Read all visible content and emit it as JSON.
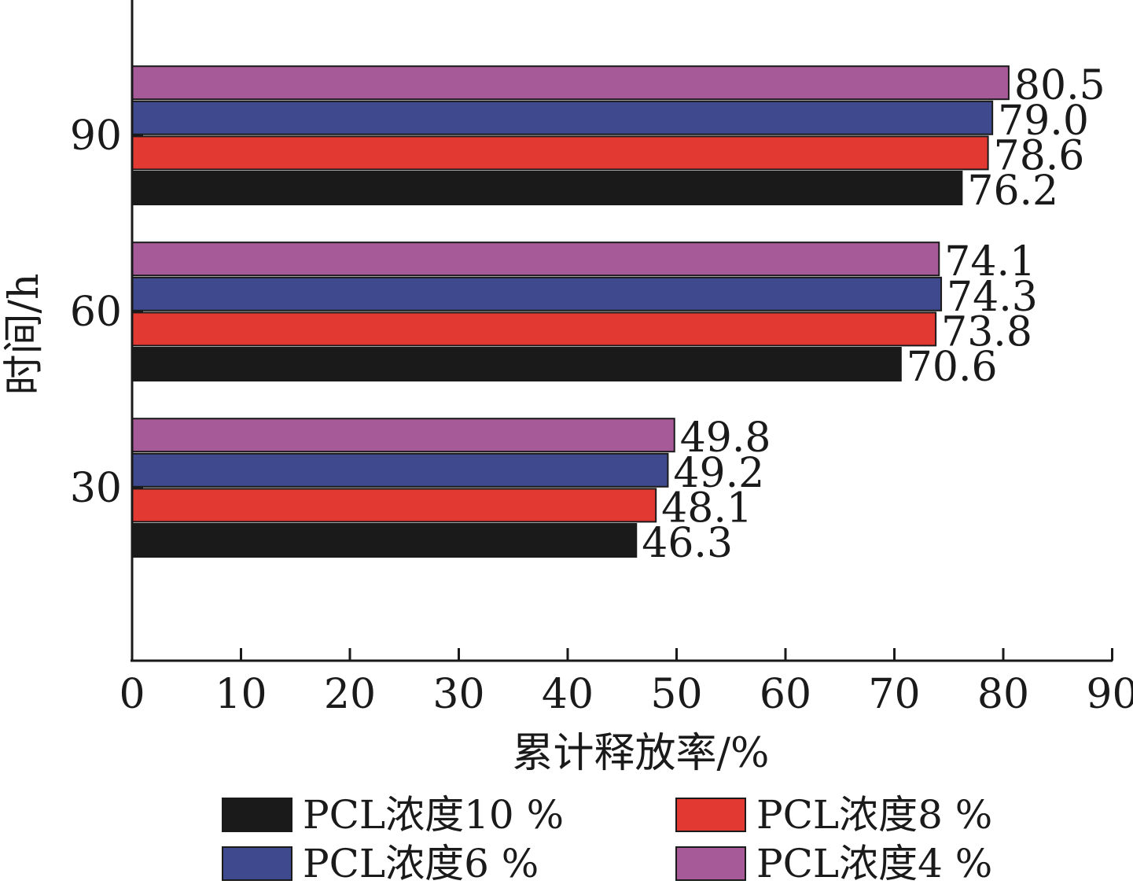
{
  "chart_data": {
    "type": "bar",
    "orientation": "horizontal",
    "categories": [
      "30",
      "60",
      "90"
    ],
    "xlabel": "累计释放率/%",
    "ylabel": "时间/h",
    "xlim": [
      0,
      90
    ],
    "x_ticks": [
      "0",
      "10",
      "20",
      "30",
      "40",
      "50",
      "60",
      "70",
      "80",
      "90"
    ],
    "grid": false,
    "legend_position": "bottom",
    "series": [
      {
        "name": "PCL浓度10 %",
        "color": "#1a1a1a",
        "values": [
          46.3,
          70.6,
          76.2
        ],
        "labels": [
          "46.3",
          "70.6",
          "76.2"
        ]
      },
      {
        "name": "PCL浓度8 %",
        "color": "#e23a33",
        "values": [
          48.1,
          73.8,
          78.6
        ],
        "labels": [
          "48.1",
          "73.8",
          "78.6"
        ]
      },
      {
        "name": "PCL浓度6 %",
        "color": "#3f4a8e",
        "values": [
          49.2,
          74.3,
          79.0
        ],
        "labels": [
          "49.2",
          "74.3",
          "79.0"
        ]
      },
      {
        "name": "PCL浓度4 %",
        "color": "#a65a98",
        "values": [
          49.8,
          74.1,
          80.5
        ],
        "labels": [
          "49.8",
          "74.1",
          "80.5"
        ]
      }
    ]
  }
}
